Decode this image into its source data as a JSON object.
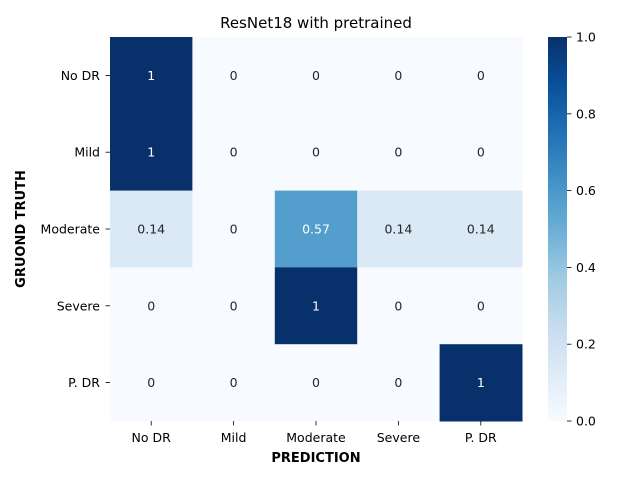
{
  "chart_data": {
    "type": "heatmap",
    "title": "ResNet18 with pretrained",
    "xlabel": "PREDICTION",
    "ylabel": "GRUOND TRUTH",
    "x_categories": [
      "No DR",
      "Mild",
      "Moderate",
      "Severe",
      "P. DR"
    ],
    "y_categories": [
      "No DR",
      "Mild",
      "Moderate",
      "Severe",
      "P. DR"
    ],
    "values": [
      [
        1,
        0,
        0,
        0,
        0
      ],
      [
        1,
        0,
        0,
        0,
        0
      ],
      [
        0.14,
        0,
        0.57,
        0.14,
        0.14
      ],
      [
        0,
        0,
        1,
        0,
        0
      ],
      [
        0,
        0,
        0,
        0,
        1
      ]
    ],
    "cell_labels": [
      [
        "1",
        "0",
        "0",
        "0",
        "0"
      ],
      [
        "1",
        "0",
        "0",
        "0",
        "0"
      ],
      [
        "0.14",
        "0",
        "0.57",
        "0.14",
        "0.14"
      ],
      [
        "0",
        "0",
        "1",
        "0",
        "0"
      ],
      [
        "0",
        "0",
        "0",
        "0",
        "1"
      ]
    ],
    "colorbar": {
      "colormap": "Blues",
      "range": [
        0,
        1
      ],
      "ticks": [
        0.0,
        0.2,
        0.4,
        0.6,
        0.8,
        1.0
      ],
      "tick_labels": [
        "0.0",
        "0.2",
        "0.4",
        "0.6",
        "0.8",
        "1.0"
      ]
    }
  }
}
